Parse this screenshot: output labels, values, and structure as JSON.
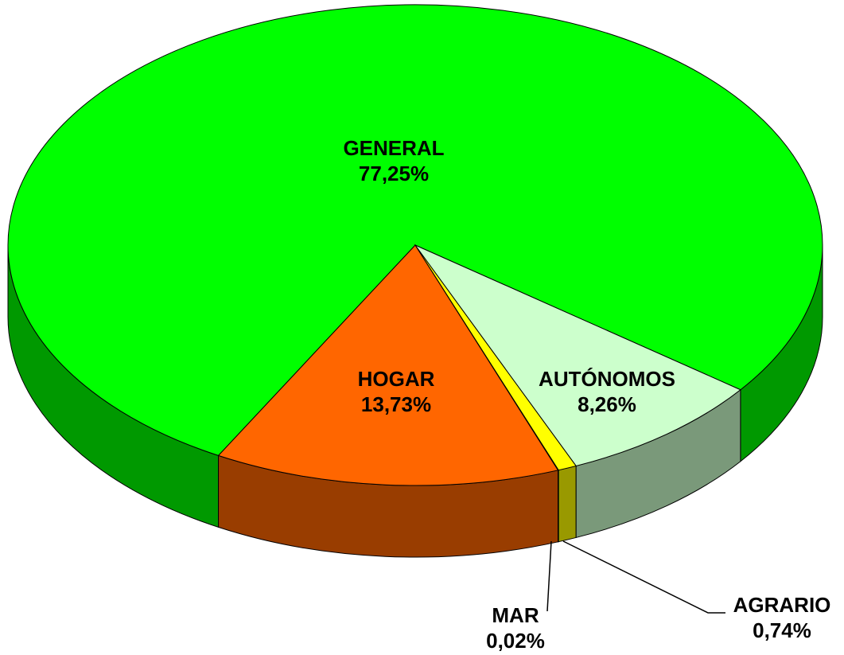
{
  "chart_data": {
    "type": "pie3d",
    "categories": [
      "GENERAL",
      "HOGAR",
      "MAR",
      "AGRARIO",
      "AUTÓNOMOS"
    ],
    "values": [
      77.25,
      13.73,
      0.02,
      0.74,
      8.26
    ],
    "value_labels": [
      "77,25%",
      "13,73%",
      "0,02%",
      "0,74%",
      "8,26%"
    ],
    "colors": [
      "#00ff00",
      "#ff6600",
      "#3366ff",
      "#ffff00",
      "#ccffcc"
    ]
  }
}
